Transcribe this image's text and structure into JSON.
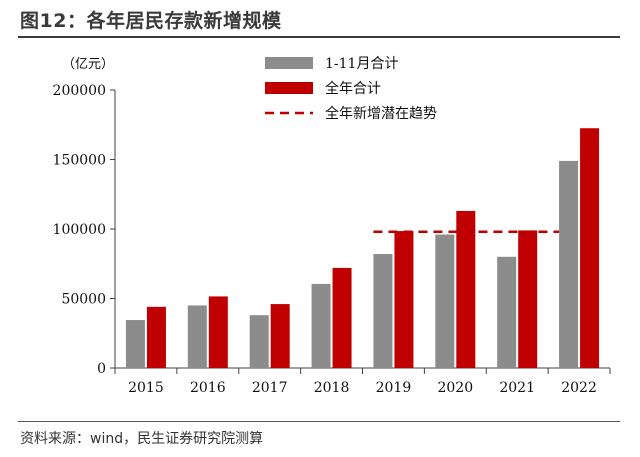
{
  "header": {
    "title": "图12：各年居民存款新增规模"
  },
  "footer": {
    "source": "资料来源：wind，民生证券研究院测算"
  },
  "colors": {
    "gray": "#8c8c8c",
    "red": "#c00000",
    "axis": "#404040"
  },
  "chart_data": {
    "type": "bar",
    "unit_label": "（亿元）",
    "categories": [
      "2015",
      "2016",
      "2017",
      "2018",
      "2019",
      "2020",
      "2021",
      "2022"
    ],
    "series": [
      {
        "name": "1-11月合计",
        "values": [
          34500,
          45000,
          38000,
          60500,
          82000,
          96000,
          80000,
          149000
        ]
      },
      {
        "name": "全年合计",
        "values": [
          44000,
          51500,
          46000,
          72000,
          98500,
          113000,
          99000,
          172500
        ]
      }
    ],
    "trend_line": {
      "name": "全年新增潜在趋势",
      "value": 98000,
      "from": "2019",
      "to": "2022"
    },
    "yticks": [
      "0",
      "50000",
      "100000",
      "150000",
      "200000"
    ],
    "ylim": [
      0,
      200000
    ],
    "legend_position": "top-right",
    "grid": false
  }
}
